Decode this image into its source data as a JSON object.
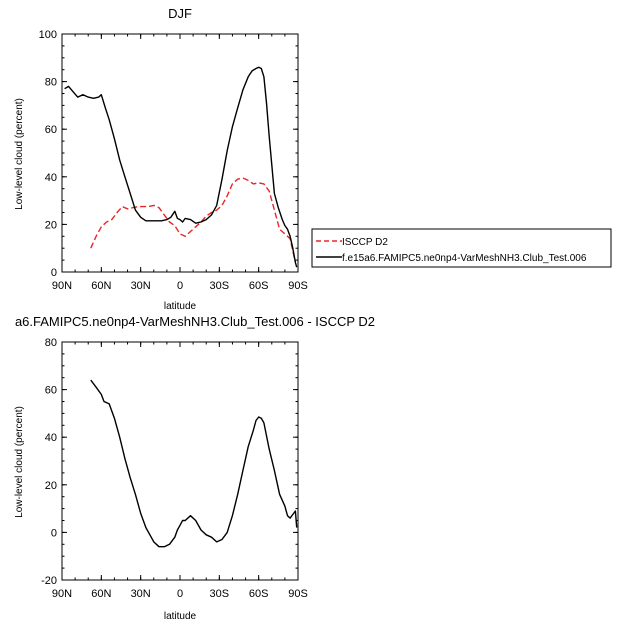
{
  "chart_data": [
    {
      "type": "line",
      "title": "DJF",
      "xlabel": "latitude",
      "ylabel": "Low-level cloud (percent)",
      "xlim": [
        90,
        -90
      ],
      "ylim": [
        0,
        100
      ],
      "x_ticks": [
        {
          "value": 90,
          "label": "90N"
        },
        {
          "value": 60,
          "label": "60N"
        },
        {
          "value": 30,
          "label": "30N"
        },
        {
          "value": 0,
          "label": "0"
        },
        {
          "value": -30,
          "label": "30S"
        },
        {
          "value": -60,
          "label": "60S"
        },
        {
          "value": -90,
          "label": "90S"
        }
      ],
      "y_ticks": [
        0,
        20,
        40,
        60,
        80,
        100
      ],
      "legend_position": "right",
      "series": [
        {
          "name": "ISCCP D2",
          "color": "#e8262a",
          "dash": "dashed",
          "x": [
            68,
            64,
            60,
            56,
            52,
            48,
            44,
            40,
            36,
            32,
            28,
            24,
            20,
            16,
            12,
            8,
            4,
            0,
            -4,
            -8,
            -12,
            -16,
            -20,
            -24,
            -28,
            -32,
            -36,
            -40,
            -44,
            -48,
            -52,
            -56,
            -60,
            -64,
            -68,
            -72,
            -76,
            -80,
            -84,
            -88
          ],
          "y": [
            10,
            15,
            19,
            21,
            22,
            25,
            27.5,
            26.5,
            27,
            27.5,
            27.5,
            27.5,
            28,
            27,
            24,
            21,
            19.5,
            16,
            15,
            17,
            19,
            21,
            23.5,
            25,
            26,
            28,
            32,
            37,
            39,
            39.5,
            38.5,
            37,
            37.5,
            37,
            34,
            26,
            18,
            16,
            14,
            4
          ]
        },
        {
          "name": "f.e15a6.FAMIPC5.ne0np4-VarMeshNH3.Club_Test.006",
          "color": "#000000",
          "dash": "solid",
          "x": [
            88,
            85,
            82,
            78,
            74,
            70,
            66,
            62,
            60,
            57,
            54,
            50,
            46,
            42,
            38,
            34,
            30,
            26,
            22,
            18,
            14,
            10,
            7,
            4,
            2,
            0,
            -2,
            -4,
            -8,
            -12,
            -16,
            -20,
            -24,
            -28,
            -32,
            -36,
            -40,
            -44,
            -48,
            -52,
            -55,
            -58,
            -60,
            -62,
            -64,
            -66,
            -68,
            -70,
            -72,
            -75,
            -78,
            -80,
            -82,
            -84,
            -86,
            -88,
            -89
          ],
          "y": [
            77,
            78,
            76,
            73.5,
            74.5,
            73.5,
            73,
            73.5,
            74.5,
            69,
            64,
            56,
            47,
            40,
            33,
            26,
            23,
            21.5,
            21.5,
            21.5,
            21.5,
            22,
            23,
            25.5,
            22.5,
            22,
            21,
            22.5,
            22,
            20.5,
            21,
            22,
            24,
            28,
            39,
            51,
            61,
            69,
            76.5,
            82,
            84.5,
            85.5,
            86,
            85.5,
            82,
            71,
            57,
            45,
            33,
            27,
            22,
            19.5,
            18,
            15,
            10,
            4,
            2
          ]
        }
      ]
    },
    {
      "type": "line",
      "title": "a6.FAMIPC5.ne0np4-VarMeshNH3.Club_Test.006 - ISCCP D2",
      "xlabel": "latitude",
      "ylabel": "Low-level cloud (percent)",
      "xlim": [
        90,
        -90
      ],
      "ylim": [
        -20,
        80
      ],
      "x_ticks": [
        {
          "value": 90,
          "label": "90N"
        },
        {
          "value": 60,
          "label": "60N"
        },
        {
          "value": 30,
          "label": "30N"
        },
        {
          "value": 0,
          "label": "0"
        },
        {
          "value": -30,
          "label": "30S"
        },
        {
          "value": -60,
          "label": "60S"
        },
        {
          "value": -90,
          "label": "90S"
        }
      ],
      "y_ticks": [
        -20,
        0,
        20,
        40,
        60,
        80
      ],
      "series": [
        {
          "name": "",
          "color": "#000000",
          "dash": "solid",
          "x": [
            68,
            64,
            60,
            58,
            54,
            50,
            46,
            42,
            38,
            34,
            30,
            26,
            22,
            20,
            18,
            16,
            12,
            8,
            4,
            2,
            0,
            -2,
            -4,
            -8,
            -12,
            -16,
            -20,
            -24,
            -28,
            -32,
            -36,
            -40,
            -44,
            -48,
            -52,
            -56,
            -58,
            -60,
            -62,
            -64,
            -68,
            -72,
            -76,
            -80,
            -82,
            -84,
            -86,
            -88,
            -89
          ],
          "y": [
            64,
            61,
            58,
            55,
            54,
            48,
            40,
            31,
            23,
            16,
            8,
            2,
            -2,
            -4,
            -5,
            -6,
            -6,
            -5,
            -2,
            1,
            3,
            5,
            5,
            7,
            5,
            1,
            -1,
            -2,
            -4,
            -3,
            0,
            7,
            16,
            26,
            36,
            43,
            47,
            48.5,
            48,
            46,
            35,
            26,
            16,
            11,
            7,
            6,
            7.5,
            9,
            2
          ]
        }
      ]
    }
  ]
}
